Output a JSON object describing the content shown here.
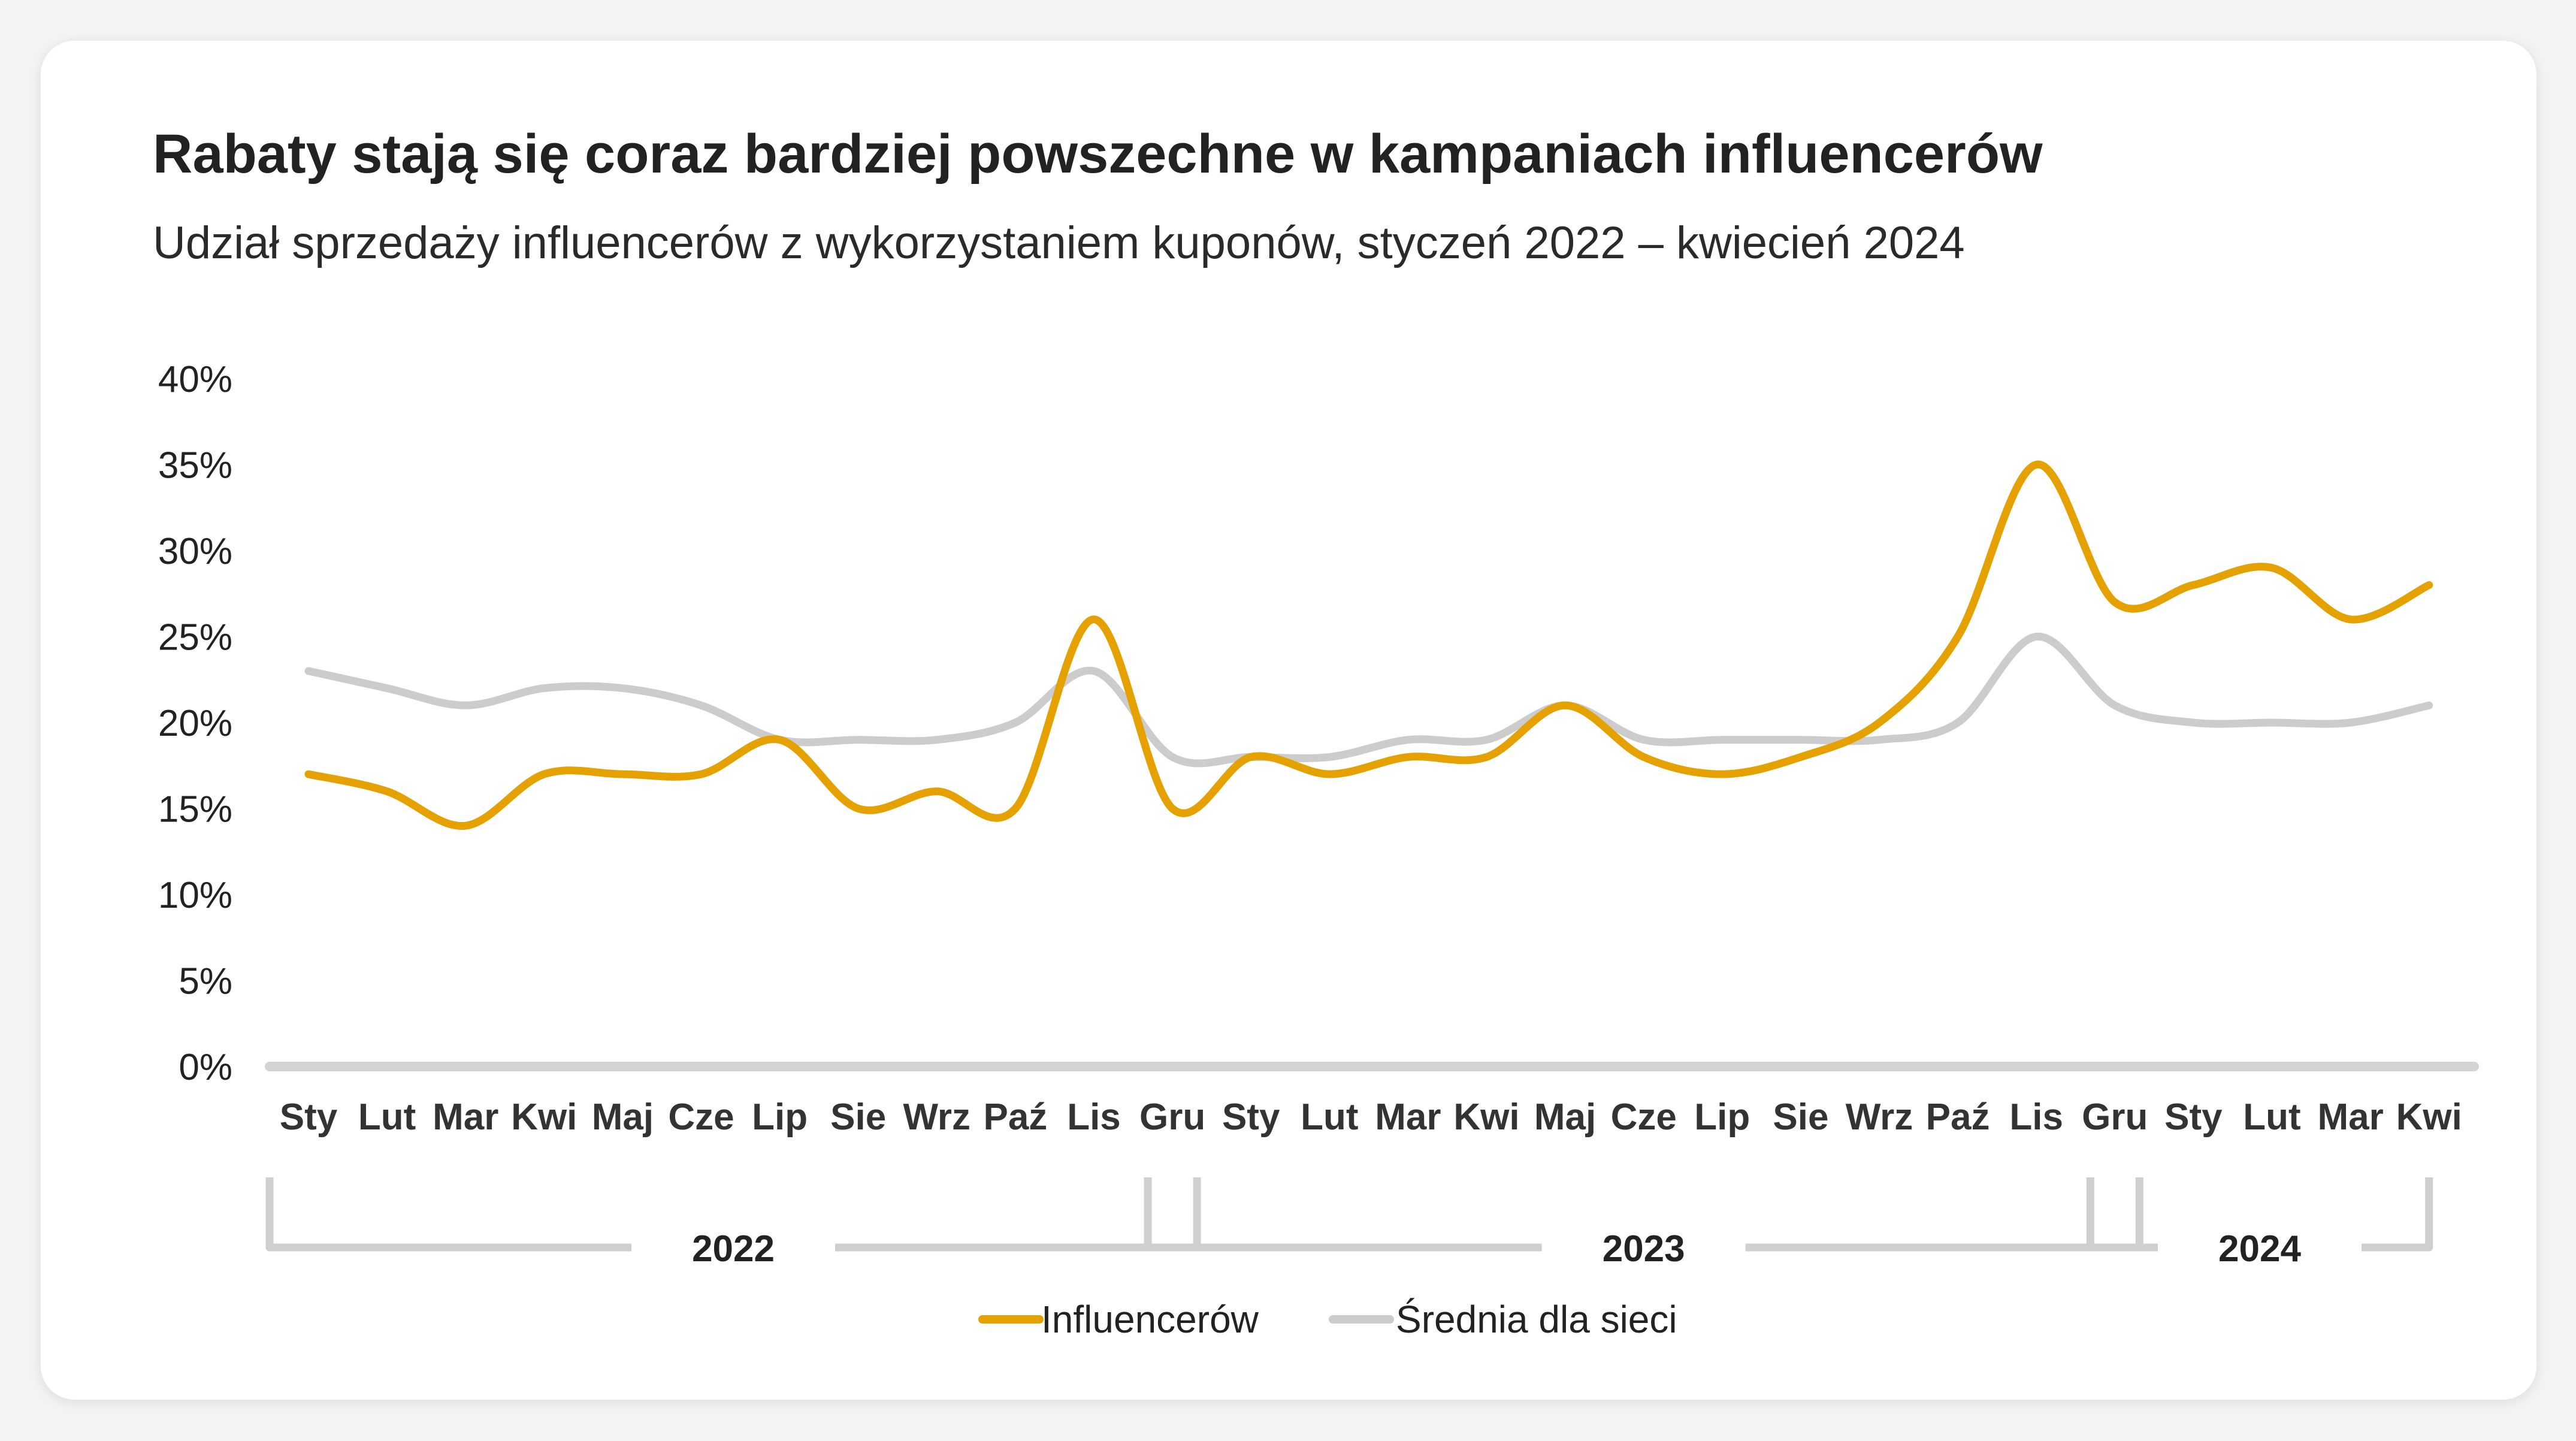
{
  "chart_data": {
    "type": "line",
    "title": "Rabaty stają się coraz bardziej powszechne w kampaniach influencerów",
    "subtitle": "Udział sprzedaży influencerów z wykorzystaniem kuponów, styczeń 2022 – kwiecień 2024",
    "xlabel": "",
    "ylabel": "",
    "ylim": [
      0,
      40
    ],
    "y_ticks": [
      "0%",
      "5%",
      "10%",
      "15%",
      "20%",
      "25%",
      "30%",
      "35%",
      "40%"
    ],
    "grid": false,
    "legend_position": "bottom",
    "categories": [
      "Sty",
      "Lut",
      "Mar",
      "Kwi",
      "Maj",
      "Cze",
      "Lip",
      "Sie",
      "Wrz",
      "Paź",
      "Lis",
      "Gru",
      "Sty",
      "Lut",
      "Mar",
      "Kwi",
      "Maj",
      "Cze",
      "Lip",
      "Sie",
      "Wrz",
      "Paź",
      "Lis",
      "Gru",
      "Sty",
      "Lut",
      "Mar",
      "Kwi"
    ],
    "x_spacing": [
      0,
      1,
      2,
      3,
      4,
      5,
      6,
      7,
      8,
      9,
      10,
      11,
      12,
      13,
      14,
      15,
      16,
      17,
      18,
      19,
      20,
      21,
      22,
      23,
      24,
      25,
      26,
      27
    ],
    "year_groups": [
      {
        "label": "2022",
        "start": 0,
        "end": 11
      },
      {
        "label": "2023",
        "start": 11,
        "end": 23
      },
      {
        "label": "2024",
        "start": 23,
        "end": 27
      }
    ],
    "series": [
      {
        "name": "Influencerów",
        "color": "#E5A100",
        "values": [
          17,
          16,
          14,
          17,
          17,
          17,
          19,
          15,
          16,
          15,
          26,
          15,
          18,
          17,
          18,
          18,
          21,
          18,
          17,
          18,
          20,
          25,
          35,
          27,
          28,
          29,
          26,
          28
        ]
      },
      {
        "name": "Średnia dla sieci",
        "color": "#CCCCCC",
        "values": [
          23,
          22,
          21,
          22,
          22,
          21,
          19,
          19,
          19,
          20,
          23,
          18,
          18,
          18,
          19,
          19,
          21,
          19,
          19,
          19,
          19,
          20,
          25,
          21,
          20,
          20,
          20,
          21
        ]
      }
    ]
  }
}
